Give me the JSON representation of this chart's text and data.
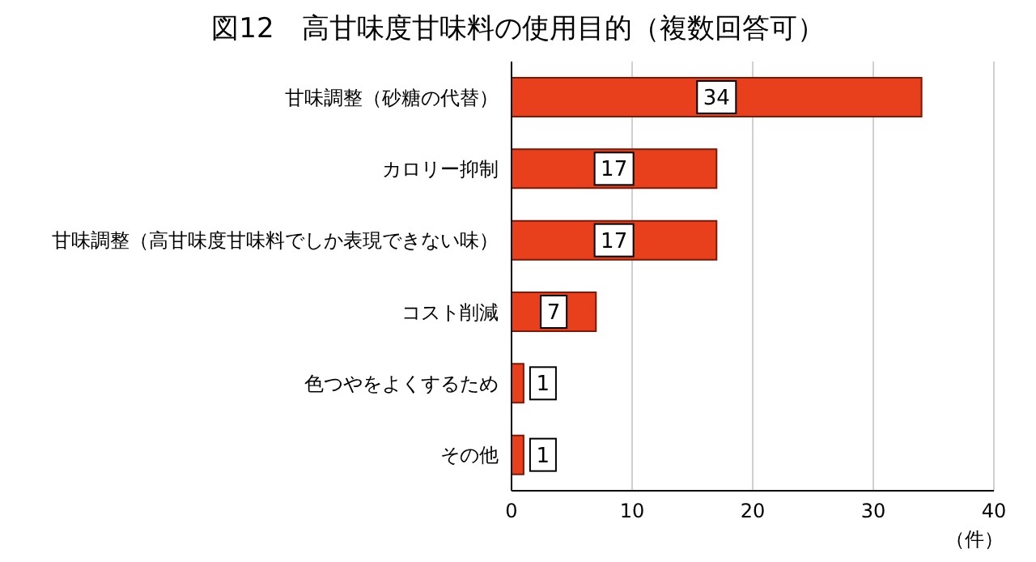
{
  "chart_data": {
    "type": "bar",
    "orientation": "horizontal",
    "title": "図12　高甘味度甘味料の使用目的（複数回答可）",
    "xlabel": "（件）",
    "categories": [
      "甘味調整（砂糖の代替）",
      "カロリー抑制",
      "甘味調整（高甘味度甘味料でしか表現できない味）",
      "コスト削減",
      "色つやをよくするため",
      "その他"
    ],
    "values": [
      34,
      17,
      17,
      7,
      1,
      1
    ],
    "color": "#e8401c",
    "data_labels": true,
    "xlim": [
      0,
      40
    ],
    "xticks": [
      0,
      10,
      20,
      30,
      40
    ],
    "grid": "x"
  }
}
